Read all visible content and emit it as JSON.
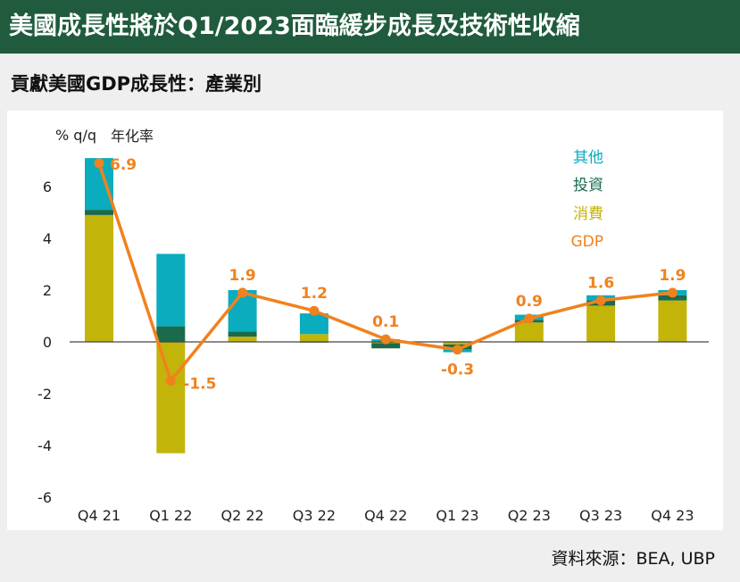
{
  "banner": {
    "title": "美國成長性將於Q1/2023面臨緩步成長及技術性收縮"
  },
  "subtitle": "貢獻美國GDP成長性：產業別",
  "source": "資料來源：BEA, UBP",
  "colors": {
    "banner_bg": "#1f5b3c",
    "other": "#0aacbe",
    "investment": "#1b6a4c",
    "consumption": "#c3b40a",
    "gdp": "#f0821e"
  },
  "chart_data": {
    "type": "bar",
    "stacked": true,
    "y_unit_label": "% q/q",
    "y_unit_sublabel": "年化率",
    "categories": [
      "Q4 21",
      "Q1 22",
      "Q2 22",
      "Q3 22",
      "Q4 22",
      "Q1 23",
      "Q2 23",
      "Q3 23",
      "Q4 23"
    ],
    "ylim": [
      -6,
      7
    ],
    "yticks": [
      6,
      4,
      2,
      0,
      -2,
      -4,
      -6
    ],
    "grid": false,
    "legend_position": "top-right",
    "series": [
      {
        "name": "其他",
        "color": "#0aacbe",
        "values": [
          2.0,
          2.8,
          1.6,
          0.8,
          0.1,
          -0.1,
          0.2,
          0.2,
          0.2
        ]
      },
      {
        "name": "投資",
        "color": "#1b6a4c",
        "values": [
          0.2,
          0.6,
          0.2,
          -0.02,
          -0.2,
          -0.2,
          0.1,
          0.2,
          0.2
        ]
      },
      {
        "name": "消費",
        "color": "#c3b40a",
        "values": [
          4.9,
          -4.3,
          0.2,
          0.3,
          -0.05,
          -0.1,
          0.75,
          1.4,
          1.6
        ]
      }
    ],
    "line": {
      "name": "GDP",
      "color": "#f0821e",
      "values": [
        6.9,
        -1.5,
        1.9,
        1.2,
        0.1,
        -0.3,
        0.9,
        1.6,
        1.9
      ],
      "labels": [
        "6.9",
        "-1.5",
        "1.9",
        "1.2",
        "0.1",
        "-0.3",
        "0.9",
        "1.6",
        "1.9"
      ]
    }
  }
}
